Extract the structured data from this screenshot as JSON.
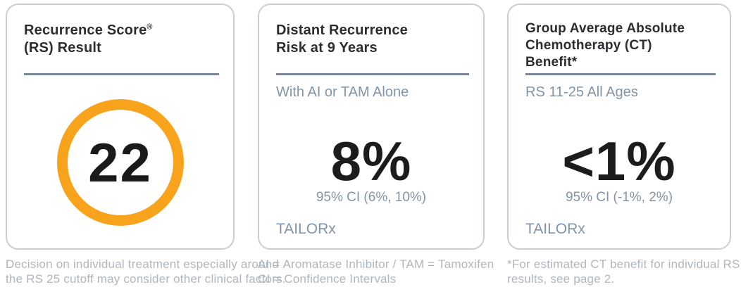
{
  "colors": {
    "accent_orange": "#F7A31C",
    "slate_text": "#8294A6",
    "divider": "#7B8794",
    "title_text": "#2B2D30",
    "value_text": "#1C1C1C",
    "card_border": "#C9CED4",
    "footnote_text": "#AFB6BC",
    "background": "#FFFFFF"
  },
  "cards": {
    "recurrence_score": {
      "title_line1": "Recurrence Score",
      "title_reg_mark": "®",
      "title_line2": "(RS) Result",
      "score": "22",
      "footnote_line1": "Decision on individual treatment especially around",
      "footnote_line2": "the RS 25 cutoff may consider other clinical factors."
    },
    "distant_recurrence": {
      "title_line1": "Distant Recurrence",
      "title_line2": "Risk at 9 Years",
      "subtitle": "With AI or TAM Alone",
      "value": "8%",
      "confidence_interval": "95% CI (6%, 10%)",
      "source": "TAILORx",
      "footnote_line1": "AI = Aromatase Inhibitor / TAM = Tamoxifen",
      "footnote_line2": "CI = Confidence Intervals"
    },
    "chemo_benefit": {
      "title_line1": "Group Average Absolute",
      "title_line2": "Chemotherapy (CT)",
      "title_line3": "Benefit*",
      "subtitle": "RS 11-25 All Ages",
      "value": "<1%",
      "confidence_interval": "95% CI (-1%, 2%)",
      "source": "TAILORx",
      "footnote_line1": "*For estimated CT benefit for individual RS",
      "footnote_line2": "results, see page 2."
    }
  }
}
